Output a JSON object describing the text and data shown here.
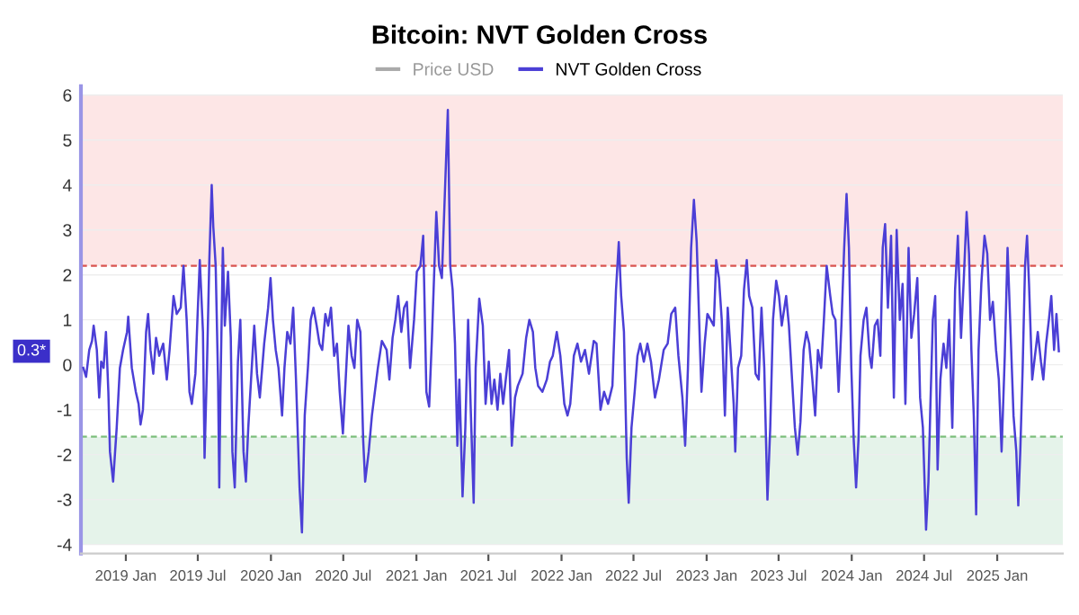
{
  "chart_data": {
    "type": "line",
    "title": "Bitcoin: NVT Golden Cross",
    "x": [
      "2018-09-16",
      "2018-09-23",
      "2018-10-01",
      "2018-10-08",
      "2018-10-12",
      "2018-10-20",
      "2018-10-26",
      "2018-10-31",
      "2018-11-06",
      "2018-11-12",
      "2018-11-18",
      "2018-11-22",
      "2018-11-30",
      "2018-12-09",
      "2018-12-17",
      "2018-12-25",
      "2019-01-04",
      "2019-01-07",
      "2019-01-16",
      "2019-01-26",
      "2019-02-02",
      "2019-02-07",
      "2019-02-13",
      "2019-02-21",
      "2019-02-26",
      "2019-03-04",
      "2019-03-11",
      "2019-03-18",
      "2019-03-26",
      "2019-04-05",
      "2019-04-14",
      "2019-04-21",
      "2019-05-01",
      "2019-05-09",
      "2019-05-19",
      "2019-05-26",
      "2019-06-03",
      "2019-06-10",
      "2019-06-16",
      "2019-06-25",
      "2019-06-30",
      "2019-07-06",
      "2019-07-14",
      "2019-07-18",
      "2019-07-24",
      "2019-07-30",
      "2019-08-05",
      "2019-08-09",
      "2019-08-15",
      "2019-08-21",
      "2019-08-24",
      "2019-08-27",
      "2019-09-02",
      "2019-09-07",
      "2019-09-15",
      "2019-09-22",
      "2019-09-26",
      "2019-10-02",
      "2019-10-10",
      "2019-10-16",
      "2019-10-24",
      "2019-10-30",
      "2019-11-05",
      "2019-11-12",
      "2019-11-20",
      "2019-11-27",
      "2019-12-04",
      "2019-12-15",
      "2019-12-25",
      "2019-12-31",
      "2020-01-06",
      "2020-01-13",
      "2020-01-20",
      "2020-01-29",
      "2020-02-04",
      "2020-02-11",
      "2020-02-19",
      "2020-02-26",
      "2020-03-04",
      "2020-03-13",
      "2020-03-19",
      "2020-03-26",
      "2020-04-03",
      "2020-04-10",
      "2020-04-17",
      "2020-04-25",
      "2020-05-02",
      "2020-05-09",
      "2020-05-17",
      "2020-05-24",
      "2020-05-31",
      "2020-06-08",
      "2020-06-15",
      "2020-06-22",
      "2020-06-30",
      "2020-07-07",
      "2020-07-14",
      "2020-07-22",
      "2020-07-29",
      "2020-08-05",
      "2020-08-13",
      "2020-08-20",
      "2020-08-25",
      "2020-09-03",
      "2020-09-11",
      "2020-09-26",
      "2020-10-06",
      "2020-10-18",
      "2020-10-25",
      "2020-11-02",
      "2020-11-09",
      "2020-11-16",
      "2020-11-24",
      "2020-12-01",
      "2020-12-08",
      "2020-12-16",
      "2020-12-26",
      "2021-01-02",
      "2021-01-11",
      "2021-01-18",
      "2021-01-26",
      "2021-02-02",
      "2021-02-09",
      "2021-02-20",
      "2021-02-27",
      "2021-03-06",
      "2021-03-14",
      "2021-03-21",
      "2021-03-27",
      "2021-04-02",
      "2021-04-08",
      "2021-04-14",
      "2021-04-19",
      "2021-04-27",
      "2021-05-04",
      "2021-05-11",
      "2021-05-19",
      "2021-05-25",
      "2021-05-30",
      "2021-06-08",
      "2021-06-17",
      "2021-06-24",
      "2021-07-02",
      "2021-07-09",
      "2021-07-16",
      "2021-07-24",
      "2021-07-31",
      "2021-08-07",
      "2021-08-22",
      "2021-08-29",
      "2021-09-06",
      "2021-09-13",
      "2021-09-25",
      "2021-10-04",
      "2021-10-12",
      "2021-10-21",
      "2021-10-27",
      "2021-11-03",
      "2021-11-14",
      "2021-11-25",
      "2021-12-03",
      "2021-12-10",
      "2021-12-20",
      "2021-12-29",
      "2022-01-08",
      "2022-01-16",
      "2022-01-23",
      "2022-02-01",
      "2022-02-10",
      "2022-02-19",
      "2022-03-01",
      "2022-03-11",
      "2022-03-23",
      "2022-03-30",
      "2022-04-09",
      "2022-04-18",
      "2022-04-28",
      "2022-05-09",
      "2022-05-18",
      "2022-05-25",
      "2022-05-31",
      "2022-06-07",
      "2022-06-14",
      "2022-06-19",
      "2022-06-26",
      "2022-07-04",
      "2022-07-11",
      "2022-07-18",
      "2022-07-27",
      "2022-08-05",
      "2022-08-14",
      "2022-08-24",
      "2022-09-03",
      "2022-09-15",
      "2022-09-25",
      "2022-10-04",
      "2022-10-14",
      "2022-10-22",
      "2022-11-01",
      "2022-11-08",
      "2022-11-15",
      "2022-11-23",
      "2022-11-30",
      "2022-12-07",
      "2022-12-15",
      "2022-12-19",
      "2022-12-27",
      "2023-01-03",
      "2023-01-19",
      "2023-01-25",
      "2023-02-01",
      "2023-02-08",
      "2023-02-16",
      "2023-02-23",
      "2023-03-02",
      "2023-03-10",
      "2023-03-14",
      "2023-03-21",
      "2023-03-29",
      "2023-04-05",
      "2023-04-12",
      "2023-04-18",
      "2023-04-26",
      "2023-05-04",
      "2023-05-12",
      "2023-05-19",
      "2023-05-26",
      "2023-06-03",
      "2023-06-10",
      "2023-06-17",
      "2023-06-25",
      "2023-07-02",
      "2023-07-09",
      "2023-07-20",
      "2023-07-27",
      "2023-08-03",
      "2023-08-11",
      "2023-08-18",
      "2023-08-25",
      "2023-09-02",
      "2023-09-09",
      "2023-09-16",
      "2023-09-24",
      "2023-10-01",
      "2023-10-08",
      "2023-10-16",
      "2023-10-23",
      "2023-10-30",
      "2023-11-08",
      "2023-11-14",
      "2023-11-21",
      "2023-11-29",
      "2023-12-06",
      "2023-12-13",
      "2023-12-19",
      "2023-12-25",
      "2023-12-31",
      "2024-01-06",
      "2024-01-12",
      "2024-01-18",
      "2024-01-23",
      "2024-01-31",
      "2024-02-07",
      "2024-02-15",
      "2024-02-20",
      "2024-02-28",
      "2024-03-06",
      "2024-03-13",
      "2024-03-19",
      "2024-03-25",
      "2024-04-01",
      "2024-04-09",
      "2024-04-16",
      "2024-04-23",
      "2024-05-01",
      "2024-05-08",
      "2024-05-15",
      "2024-05-23",
      "2024-05-30",
      "2024-06-06",
      "2024-06-14",
      "2024-06-21",
      "2024-06-28",
      "2024-07-06",
      "2024-07-12",
      "2024-07-17",
      "2024-07-23",
      "2024-07-29",
      "2024-08-04",
      "2024-08-11",
      "2024-08-19",
      "2024-08-26",
      "2024-09-02",
      "2024-09-10",
      "2024-09-17",
      "2024-09-24",
      "2024-10-02",
      "2024-10-09",
      "2024-10-16",
      "2024-10-22",
      "2024-10-28",
      "2024-11-03",
      "2024-11-09",
      "2024-11-15",
      "2024-11-22",
      "2024-11-30",
      "2024-12-07",
      "2024-12-14",
      "2024-12-21",
      "2024-12-29",
      "2025-01-05",
      "2025-01-12",
      "2025-01-20",
      "2025-01-27",
      "2025-02-03",
      "2025-02-11",
      "2025-02-18",
      "2025-02-23",
      "2025-02-28",
      "2025-03-06",
      "2025-03-12",
      "2025-03-17",
      "2025-03-22",
      "2025-03-30",
      "2025-04-06",
      "2025-04-13",
      "2025-04-21",
      "2025-04-27",
      "2025-05-04",
      "2025-05-11",
      "2025-05-17",
      "2025-05-24",
      "2025-05-30",
      "2025-06-05"
    ],
    "series": [
      {
        "name": "Price USD",
        "color": "#aaaaaa",
        "values": [
          null,
          null,
          null,
          null,
          null,
          null,
          null,
          null,
          null,
          null,
          null,
          null,
          null,
          null,
          null,
          null,
          null,
          null,
          null,
          null,
          null,
          null,
          null,
          null,
          null,
          null,
          null,
          null,
          null,
          null,
          null,
          null,
          null,
          null,
          null,
          null,
          null,
          null,
          null,
          null,
          null,
          null,
          null,
          null,
          null,
          null,
          null,
          null,
          null,
          null,
          null,
          null,
          null,
          null,
          null,
          null,
          null,
          null,
          null,
          null,
          null,
          null,
          null,
          null,
          null,
          null,
          null,
          null,
          null,
          null,
          null,
          null,
          null,
          null,
          null,
          null,
          null,
          null,
          null,
          null,
          null,
          null,
          null,
          null,
          null,
          null,
          null,
          null,
          null,
          null,
          null,
          null,
          null,
          null,
          null,
          null,
          null,
          null,
          null,
          null,
          null,
          null,
          null,
          null,
          null,
          null,
          null,
          null,
          null,
          null,
          null,
          null,
          null,
          null,
          null,
          null,
          null,
          null,
          null,
          null,
          null,
          null,
          null,
          null,
          null,
          null,
          null,
          null,
          null,
          null,
          null,
          null,
          null,
          null,
          null,
          null,
          null,
          null,
          null,
          null,
          null,
          null,
          null,
          null,
          null,
          null,
          null,
          null,
          null,
          null,
          null,
          null,
          null,
          null,
          null,
          null,
          null,
          null,
          null,
          null,
          null,
          null,
          null,
          null,
          null,
          null,
          null,
          null,
          null,
          null,
          null,
          null,
          null,
          null,
          null,
          null,
          null,
          null,
          null,
          null,
          null,
          null,
          null,
          null,
          null,
          null,
          null,
          null,
          null,
          null,
          null,
          null,
          null,
          null,
          null,
          null,
          null,
          null,
          null,
          null,
          null,
          null,
          null,
          null,
          null,
          null,
          null,
          null,
          null,
          null,
          null,
          null,
          null,
          null,
          null,
          null,
          null,
          null,
          null,
          null,
          null,
          null,
          null,
          null,
          null,
          null,
          null,
          null,
          null,
          null,
          null,
          null,
          null,
          null,
          null,
          null,
          null,
          null,
          null,
          null,
          null,
          null,
          null,
          null,
          null,
          null,
          null,
          null,
          null,
          null,
          null,
          null,
          null,
          null,
          null,
          null,
          null,
          null,
          null,
          null,
          null,
          null,
          null,
          null,
          null,
          null,
          null,
          null,
          null,
          null,
          null,
          null,
          null,
          null,
          null,
          null,
          null,
          null,
          null,
          null,
          null,
          null,
          null,
          null,
          null,
          null,
          null,
          null,
          null,
          null,
          null,
          null,
          null,
          null,
          null,
          null,
          null,
          null,
          null,
          null,
          null,
          null,
          null,
          null,
          null,
          null,
          null,
          null,
          null,
          null,
          null,
          null,
          null,
          null,
          null,
          null,
          null,
          null,
          null,
          null,
          null,
          null,
          null,
          null,
          null,
          null,
          null,
          null,
          null,
          null,
          null,
          null,
          null,
          null
        ]
      },
      {
        "name": "NVT Golden Cross",
        "color": "#4b3fd6",
        "values": [
          -0.07,
          -0.27,
          0.33,
          0.53,
          0.87,
          0.33,
          -0.73,
          0.07,
          -0.07,
          0.73,
          -0.6,
          -1.93,
          -2.6,
          -1.4,
          -0.07,
          0.33,
          0.73,
          1.07,
          -0.07,
          -0.6,
          -0.87,
          -1.33,
          -1.0,
          0.73,
          1.13,
          0.33,
          -0.2,
          0.6,
          0.2,
          0.47,
          -0.33,
          0.33,
          1.53,
          1.13,
          1.27,
          2.2,
          1.0,
          -0.6,
          -0.87,
          -0.2,
          1.0,
          2.33,
          0.73,
          -2.07,
          -0.07,
          2.33,
          4.0,
          3.07,
          2.2,
          -0.33,
          -2.73,
          -0.6,
          2.6,
          0.87,
          2.07,
          0.6,
          -1.93,
          -2.73,
          0.07,
          1.0,
          -1.93,
          -2.6,
          -1.4,
          -0.33,
          0.87,
          -0.2,
          -0.73,
          0.47,
          1.27,
          1.93,
          1.0,
          0.33,
          -0.07,
          -1.13,
          -0.07,
          0.73,
          0.47,
          1.27,
          -0.33,
          -2.73,
          -3.73,
          -1.13,
          -0.07,
          1.0,
          1.27,
          0.87,
          0.47,
          0.33,
          1.13,
          0.87,
          1.27,
          0.2,
          0.47,
          -0.6,
          -1.53,
          -0.33,
          0.87,
          0.2,
          -0.07,
          1.0,
          0.73,
          -1.67,
          -2.6,
          -1.93,
          -1.13,
          -0.07,
          0.53,
          0.33,
          -0.33,
          0.6,
          1.0,
          1.53,
          0.73,
          1.27,
          1.4,
          -0.07,
          1.0,
          2.07,
          2.2,
          2.87,
          -0.6,
          -0.93,
          0.6,
          3.4,
          2.2,
          1.93,
          3.93,
          5.67,
          2.2,
          1.67,
          0.47,
          -1.8,
          -0.33,
          -2.93,
          -1.4,
          1.0,
          -1.4,
          -3.07,
          -0.07,
          1.47,
          0.87,
          -0.87,
          0.07,
          -0.87,
          -0.33,
          -1.0,
          -0.2,
          -0.87,
          0.33,
          -1.8,
          -0.73,
          -0.47,
          -0.2,
          0.6,
          1.0,
          0.73,
          -0.07,
          -0.47,
          -0.6,
          -0.33,
          0.07,
          0.2,
          0.73,
          0.2,
          -0.87,
          -1.13,
          -0.87,
          0.2,
          0.47,
          0.07,
          0.33,
          -0.2,
          0.53,
          0.47,
          -1.0,
          -0.6,
          -0.87,
          -0.47,
          1.67,
          2.73,
          1.53,
          0.73,
          -2.07,
          -3.07,
          -1.4,
          -0.6,
          0.2,
          0.47,
          0.07,
          0.47,
          0.07,
          -0.73,
          -0.33,
          0.33,
          0.47,
          1.13,
          1.27,
          0.2,
          -0.73,
          -1.8,
          -0.07,
          2.6,
          3.67,
          2.73,
          0.47,
          -0.6,
          0.47,
          1.13,
          0.87,
          2.33,
          1.93,
          1.0,
          -1.13,
          1.27,
          0.33,
          -0.87,
          -1.93,
          -0.07,
          0.2,
          1.67,
          2.33,
          1.53,
          1.27,
          -0.2,
          -0.33,
          1.27,
          -0.07,
          -3.0,
          -1.4,
          1.0,
          1.87,
          1.53,
          0.87,
          1.53,
          0.87,
          -0.2,
          -1.4,
          -2.0,
          -1.27,
          0.33,
          0.73,
          0.47,
          -0.33,
          -1.13,
          0.33,
          -0.07,
          1.0,
          2.2,
          1.53,
          1.13,
          1.0,
          -0.6,
          0.87,
          2.6,
          3.8,
          2.6,
          -0.07,
          -1.67,
          -2.73,
          -1.67,
          0.2,
          1.0,
          1.27,
          0.2,
          -0.07,
          0.87,
          1.0,
          0.2,
          2.6,
          3.13,
          1.27,
          2.87,
          -0.73,
          3.0,
          1.0,
          1.8,
          -0.87,
          2.6,
          0.6,
          1.13,
          1.93,
          -0.73,
          -1.4,
          -3.67,
          -2.6,
          -0.87,
          1.0,
          1.53,
          -2.33,
          -0.33,
          0.47,
          -0.07,
          1.0,
          -1.4,
          1.67,
          2.87,
          0.6,
          1.93,
          3.4,
          2.47,
          0.33,
          -1.13,
          -3.33,
          0.33,
          1.8,
          2.87,
          2.47,
          1.0,
          1.4,
          0.33,
          -0.33,
          -1.93,
          0.2,
          2.6,
          0.87,
          -1.13,
          -1.93,
          -3.13,
          -1.93,
          -0.07,
          2.2,
          2.87,
          1.8,
          -0.33,
          0.2,
          0.73,
          0.07,
          -0.33,
          0.47,
          1.0,
          1.53,
          0.33,
          1.13,
          0.3
        ]
      }
    ],
    "xlim": [
      "2018-09-10",
      "2025-06-15"
    ],
    "xticks": [
      {
        "value": "2019-01-01",
        "label": "2019 Jan"
      },
      {
        "value": "2019-07-01",
        "label": "2019 Jul"
      },
      {
        "value": "2020-01-01",
        "label": "2020 Jan"
      },
      {
        "value": "2020-07-01",
        "label": "2020 Jul"
      },
      {
        "value": "2021-01-01",
        "label": "2021 Jan"
      },
      {
        "value": "2021-07-01",
        "label": "2021 Jul"
      },
      {
        "value": "2022-01-01",
        "label": "2022 Jan"
      },
      {
        "value": "2022-07-01",
        "label": "2022 Jul"
      },
      {
        "value": "2023-01-01",
        "label": "2023 Jan"
      },
      {
        "value": "2023-07-01",
        "label": "2023 Jul"
      },
      {
        "value": "2024-01-01",
        "label": "2024 Jan"
      },
      {
        "value": "2024-07-01",
        "label": "2024 Jul"
      },
      {
        "value": "2025-01-01",
        "label": "2025 Jan"
      }
    ],
    "ylim": [
      -4.2,
      6.2
    ],
    "yticks": [
      -4,
      -3,
      -2,
      -1,
      0,
      1,
      2,
      3,
      4,
      5,
      6
    ],
    "grid": "y",
    "legend": "top",
    "line_style": "solid",
    "bands": [
      {
        "axis": "y",
        "from": 2.2,
        "to": 6,
        "color": "#fde6e6"
      },
      {
        "axis": "y",
        "from": -4,
        "to": -1.6,
        "color": "#e5f3ea"
      }
    ],
    "ref_lines": [
      {
        "axis": "y",
        "value": 2.2,
        "color": "#d9534f",
        "line_style": "dashed"
      },
      {
        "axis": "y",
        "value": -1.6,
        "color": "#7cbf7c",
        "line_style": "dashed"
      }
    ],
    "annotations": [
      "0.3*"
    ]
  }
}
